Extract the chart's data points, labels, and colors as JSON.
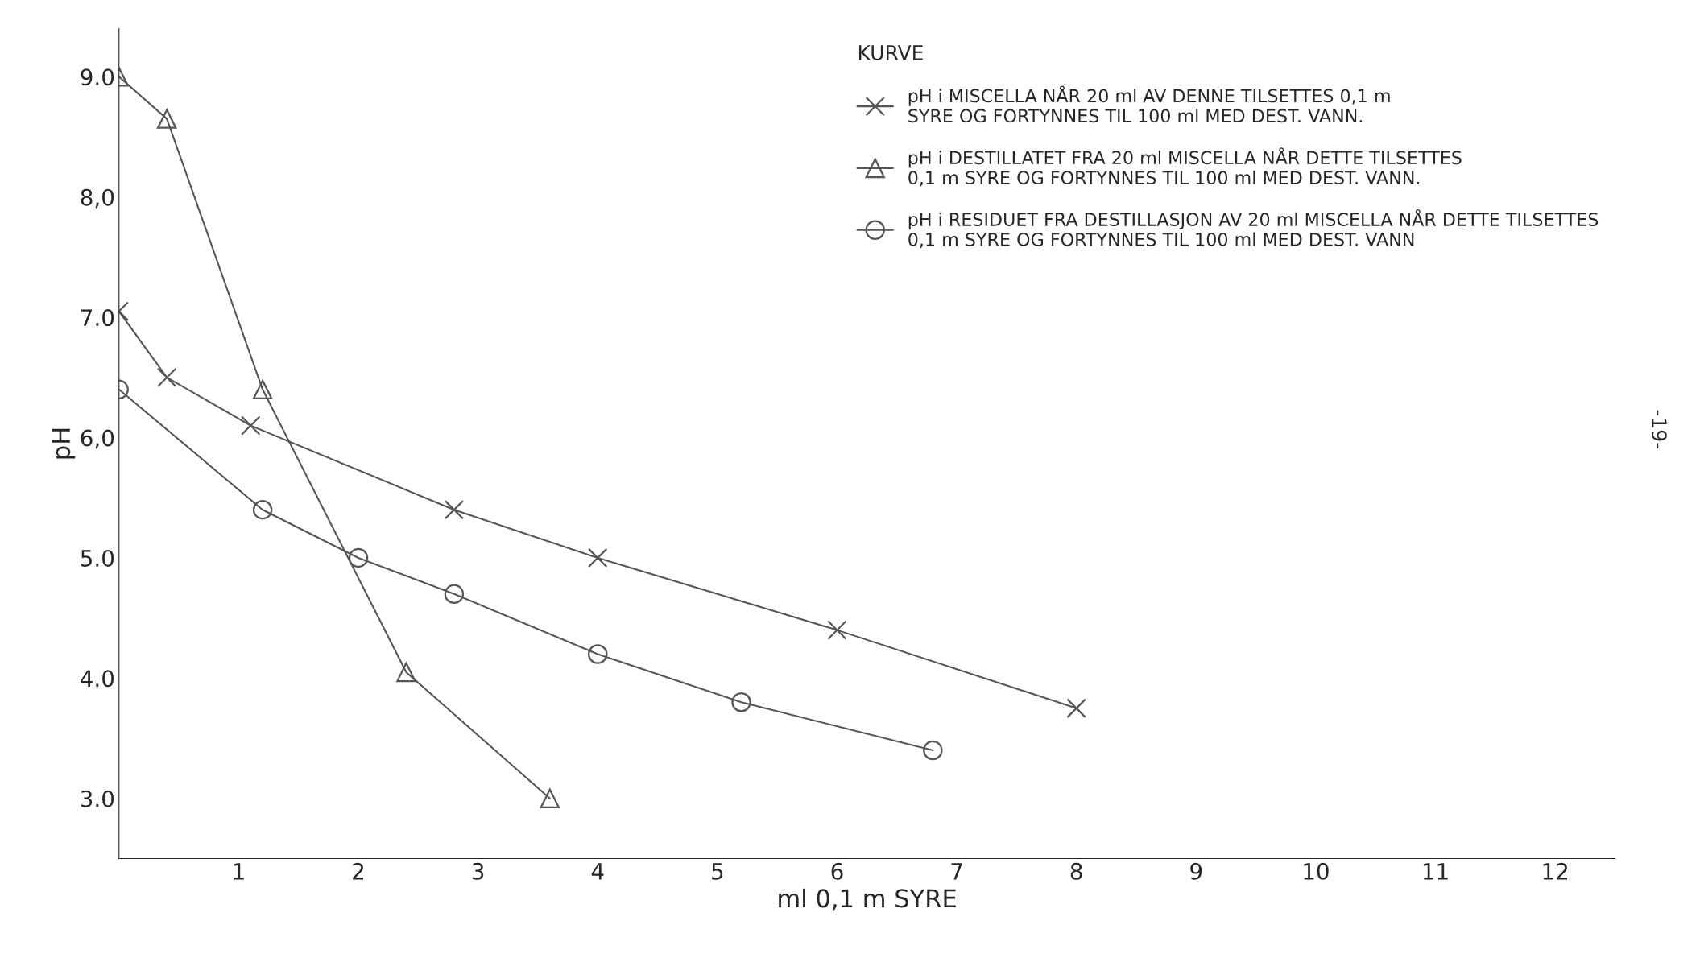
{
  "chart_data": {
    "type": "line",
    "xlabel": "ml 0,1 m SYRE",
    "ylabel": "pH",
    "legend_title": "KURVE",
    "xlim": [
      0,
      12.5
    ],
    "ylim": [
      2.5,
      9.4
    ],
    "xticks": [
      1,
      2,
      3,
      4,
      5,
      6,
      7,
      8,
      9,
      10,
      11,
      12
    ],
    "yticks": [
      {
        "value": 3,
        "label": "3.0"
      },
      {
        "value": 4,
        "label": "4.0"
      },
      {
        "value": 5,
        "label": "5.0"
      },
      {
        "value": 6,
        "label": "6,0"
      },
      {
        "value": 7,
        "label": "7.0"
      },
      {
        "value": 8,
        "label": "8,0"
      },
      {
        "value": 9,
        "label": "9.0"
      }
    ],
    "grid": false,
    "legend": "top right",
    "series": [
      {
        "name": "pH i MISCELLA NÅR 20 ml AV DENNE TILSETTES 0,1 m SYRE OG FORTYNNES TIL 100 ml MED DEST. VANN.",
        "color": "#555555",
        "marker": "cross",
        "x": [
          0,
          0.4,
          1.1,
          2.8,
          4.0,
          6.0,
          8.0
        ],
        "values": [
          7.05,
          6.5,
          6.1,
          5.4,
          5.0,
          4.4,
          3.75
        ]
      },
      {
        "name": "pH i DESTILLATET FRA 20 ml MISCELLA NÅR DETTE TILSETTES 0,1 m SYRE OG FORTYNNES TIL 100 ml MED DEST. VANN.",
        "color": "#555555",
        "marker": "triangle",
        "x": [
          0,
          0.4,
          1.2,
          2.4,
          3.6
        ],
        "values": [
          9.0,
          8.65,
          6.4,
          4.05,
          3.0
        ]
      },
      {
        "name": "pH i RESIDUET FRA DESTILLASJON AV 20 ml MISCELLA NÅR DETTE TILSETTES 0,1 m SYRE OG FORTYNNES TIL 100 ml MED DEST. VANN",
        "color": "#555555",
        "marker": "circle",
        "x": [
          0,
          1.2,
          2.0,
          2.8,
          4.0,
          5.2,
          6.8
        ],
        "values": [
          6.4,
          5.4,
          5.0,
          4.7,
          4.2,
          3.8,
          3.4
        ]
      }
    ],
    "annotations": [
      "-19-"
    ]
  }
}
